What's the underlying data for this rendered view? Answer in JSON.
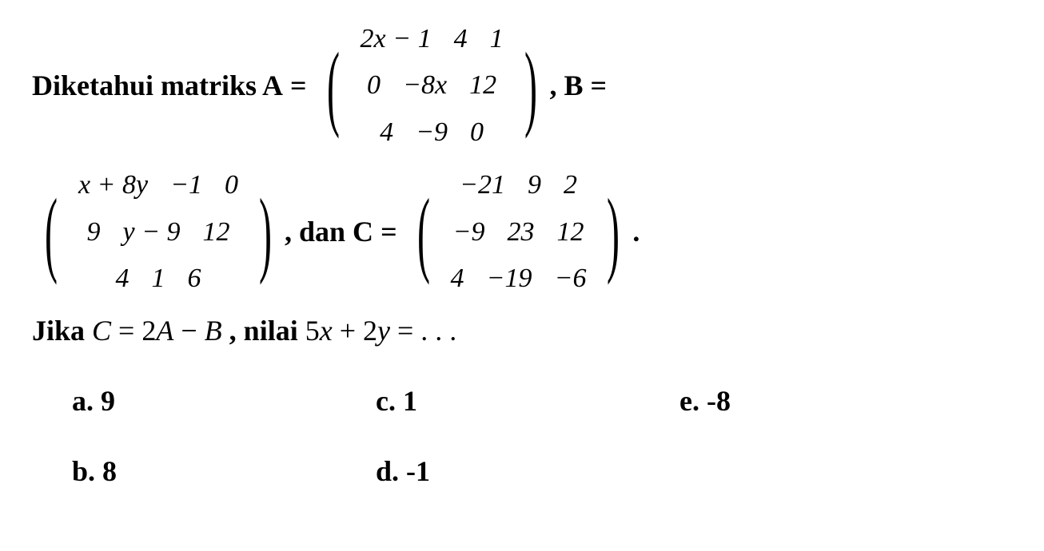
{
  "text": {
    "diketahui": "Diketahui matriks A",
    "equals1": " = ",
    "comma_b": ", ",
    "b_equals": "B =",
    "comma_dan_c": ", ",
    "dan_c": "dan C",
    "equals3": " = ",
    "period": ".",
    "jika": "Jika ",
    "c_var": "C",
    "eq_2a_b": " = 2",
    "a_var": "A",
    "minus": " − ",
    "b_var": "B",
    "nilai": " , nilai ",
    "expr": "5",
    "x_var": "x",
    "plus": " + 2",
    "y_var": "y",
    "eq_dots": " = . . ."
  },
  "matrixA": {
    "rows": [
      [
        "2x − 1",
        "4",
        "1"
      ],
      [
        "0",
        "−8x",
        "12"
      ],
      [
        "4",
        "−9",
        "0"
      ]
    ]
  },
  "matrixB": {
    "rows": [
      [
        "x + 8y",
        "−1",
        "0"
      ],
      [
        "9",
        "y − 9",
        "12"
      ],
      [
        "4",
        "1",
        "6"
      ]
    ]
  },
  "matrixC": {
    "rows": [
      [
        "−21",
        "9",
        "2"
      ],
      [
        "−9",
        "23",
        "12"
      ],
      [
        "4",
        "−19",
        "−6"
      ]
    ]
  },
  "options": {
    "a": "a. 9",
    "b": "b. 8",
    "c": "c. 1",
    "d": "d. -1",
    "e": "e. -8"
  },
  "style": {
    "font_size_main": 36,
    "font_size_cell": 34,
    "bg_color": "#ffffff",
    "text_color": "#000000",
    "paren_size": 120
  }
}
